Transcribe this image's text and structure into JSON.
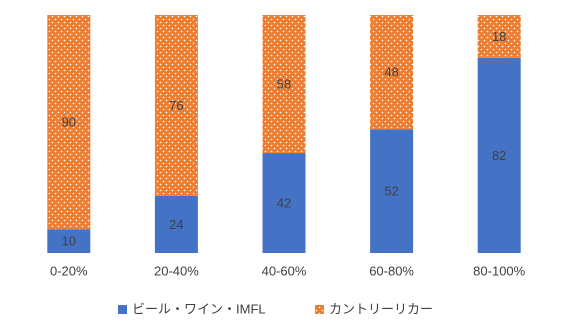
{
  "chart_data": {
    "type": "stacked_bar",
    "categories": [
      "0-20%",
      "20-40%",
      "40-60%",
      "60-80%",
      "80-100%"
    ],
    "series": [
      {
        "name": "ビール・ワイン・IMFL",
        "color": "#4472c4",
        "values": [
          10,
          24,
          42,
          52,
          82
        ]
      },
      {
        "name": "カントリーリカー",
        "color": "#ed7d31",
        "values": [
          90,
          76,
          58,
          48,
          18
        ]
      }
    ],
    "ylim": [
      0,
      100
    ],
    "legend": "bottom"
  }
}
